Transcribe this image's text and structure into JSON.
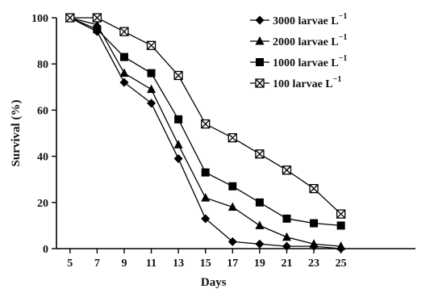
{
  "chart_data": {
    "type": "line",
    "xlabel": "Days",
    "ylabel": "Survival (%)",
    "x": [
      5,
      7,
      9,
      11,
      13,
      15,
      17,
      19,
      21,
      23,
      25
    ],
    "x_ticks": [
      "5",
      "7",
      "9",
      "11",
      "13",
      "15",
      "17",
      "19",
      "21",
      "23",
      "25"
    ],
    "y_ticks": [
      "0",
      "20",
      "40",
      "60",
      "80",
      "100"
    ],
    "xlim": [
      4,
      30.5
    ],
    "ylim": [
      0,
      100
    ],
    "grid": false,
    "legend_position": "top-right",
    "series": [
      {
        "name": "3000 larvae L",
        "name_sup": "−1",
        "marker": "diamond",
        "color": "#000000",
        "values": [
          100,
          94,
          72,
          63,
          39,
          13,
          3,
          2,
          1,
          1,
          0
        ]
      },
      {
        "name": "2000 larvae L",
        "name_sup": "−1",
        "marker": "triangle",
        "color": "#000000",
        "values": [
          100,
          97,
          76,
          69,
          45,
          22,
          18,
          10,
          5,
          2,
          1
        ]
      },
      {
        "name": "1000 larvae L",
        "name_sup": "−1",
        "marker": "square",
        "color": "#000000",
        "values": [
          100,
          95,
          83,
          76,
          56,
          33,
          27,
          20,
          13,
          11,
          10
        ]
      },
      {
        "name": "100 larvae L",
        "name_sup": "−1",
        "marker": "x-square",
        "color": "#000000",
        "values": [
          100,
          100,
          94,
          88,
          75,
          54,
          48,
          41,
          34,
          26,
          15
        ]
      }
    ]
  }
}
